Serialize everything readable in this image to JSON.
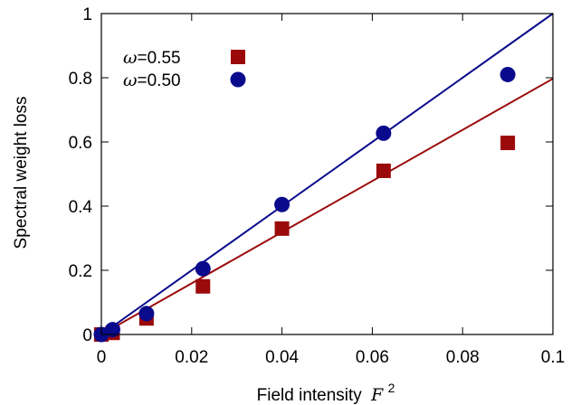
{
  "chart_data": {
    "type": "scatter",
    "xlabel": "Field intensity",
    "xlabel_symbol": "F",
    "xlabel_superscript": "2",
    "ylabel": "Spectral weight loss",
    "xlim": [
      0,
      0.1
    ],
    "ylim": [
      0,
      1
    ],
    "x_ticks": [
      0,
      0.02,
      0.04,
      0.06,
      0.08,
      0.1
    ],
    "x_tick_labels": [
      "0",
      "0.02",
      "0.04",
      "0.06",
      "0.08",
      "0.1"
    ],
    "y_ticks": [
      0,
      0.2,
      0.4,
      0.6,
      0.8,
      1
    ],
    "y_tick_labels": [
      "0",
      "0.2",
      "0.4",
      "0.6",
      "0.8",
      "1"
    ],
    "grid": false,
    "legend_position": "top-left",
    "series": [
      {
        "name": "ω=0.55",
        "name_symbol": "ω",
        "name_value": "=0.55",
        "marker": "square",
        "color": "#9b0a0a",
        "x": [
          0.0,
          0.0025,
          0.01,
          0.0225,
          0.04,
          0.0625,
          0.09
        ],
        "y": [
          0.0,
          0.005,
          0.05,
          0.15,
          0.33,
          0.51,
          0.597
        ],
        "fit_line": {
          "x": [
            0,
            0.1
          ],
          "y": [
            0,
            0.797
          ]
        }
      },
      {
        "name": "ω=0.50",
        "name_symbol": "ω",
        "name_value": "=0.50",
        "marker": "circle",
        "color": "#0a0a8c",
        "x": [
          0.0,
          0.0025,
          0.01,
          0.0225,
          0.04,
          0.0625,
          0.09
        ],
        "y": [
          0.0,
          0.015,
          0.065,
          0.205,
          0.405,
          0.627,
          0.81
        ],
        "fit_line": {
          "x": [
            0,
            0.1
          ],
          "y": [
            0,
            1.0
          ]
        }
      }
    ]
  }
}
